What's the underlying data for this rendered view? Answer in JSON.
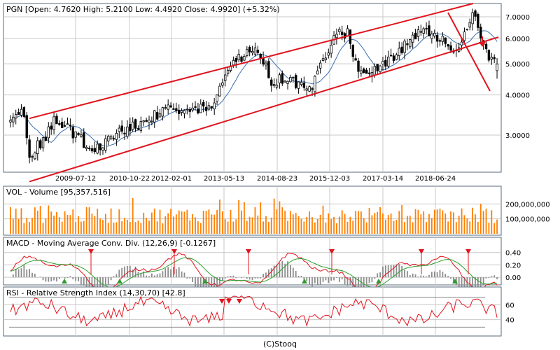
{
  "colors": {
    "frame": "#5a6a7a",
    "grid": "#c8c8c8",
    "candle_up": "#ffffff",
    "candle_down": "#000000",
    "trendline": "#e0141e",
    "moving_average": "#3a6fb0",
    "volume_bar": "#ff7f00",
    "macd_line": "#e0141e",
    "signal_line": "#2aa02a",
    "histogram": "#8c8c8c",
    "buy_marker": "#2f9a2f",
    "sell_marker": "#e0141e",
    "rsi_line": "#e0141e"
  },
  "footer": {
    "copyright": "(C)Stooq"
  },
  "chart_data": [
    {
      "type": "candlestick",
      "title": "PGN [Open: 4.7620  High: 5.2100  Low: 4.4920  Close: 4.9920] (+5.32%)",
      "y_scale": "log",
      "ylim": [
        2.3,
        7.7
      ],
      "y_ticks": [
        "7.0000",
        "6.0000",
        "5.0000",
        "4.0000",
        "3.0000"
      ],
      "x_ticks": [
        "2009-07-12",
        "2010-10-22",
        "2012-02-01",
        "2013-05-13",
        "2014-08-23",
        "2015-12-03",
        "2017-03-14",
        "2018-06-24"
      ],
      "grid": true,
      "trend_lines": [
        {
          "from": [
            "2008-06",
            3.38
          ],
          "to": [
            "2018-04",
            7.8
          ]
        },
        {
          "from": [
            "2008-06",
            2.15
          ],
          "to": [
            "2019-04",
            6.05
          ]
        },
        {
          "from": [
            "2018-05",
            7.6
          ],
          "to": [
            "2019-04",
            4.2
          ]
        }
      ],
      "last_candle": {
        "open": 4.762,
        "high": 5.21,
        "low": 4.492,
        "close": 4.992
      }
    },
    {
      "type": "bar",
      "title": "VOL - Volume [95,357,516]",
      "y_ticks": [
        "200,000,000",
        "100,000,000"
      ],
      "ylim": [
        0,
        300000000
      ],
      "last_value": 95357516
    },
    {
      "type": "line",
      "title": "MACD - Moving Average Conv. Div. (12,26,9) [-0.1267]",
      "y_ticks": [
        "0.40",
        "0.20",
        "0.00"
      ],
      "ylim": [
        -0.1,
        0.6
      ],
      "series": [
        {
          "name": "MACD",
          "type": "line"
        },
        {
          "name": "Signal",
          "type": "line"
        },
        {
          "name": "Histogram",
          "type": "bar"
        }
      ],
      "last_value": -0.1267
    },
    {
      "type": "line",
      "title": "RSI - Relative Strength Index (14,30,70) [42.8]",
      "y_ticks": [
        "60",
        "40"
      ],
      "ylim": [
        20,
        80
      ],
      "reference_lines": [
        30,
        70
      ],
      "last_value": 42.8
    }
  ]
}
